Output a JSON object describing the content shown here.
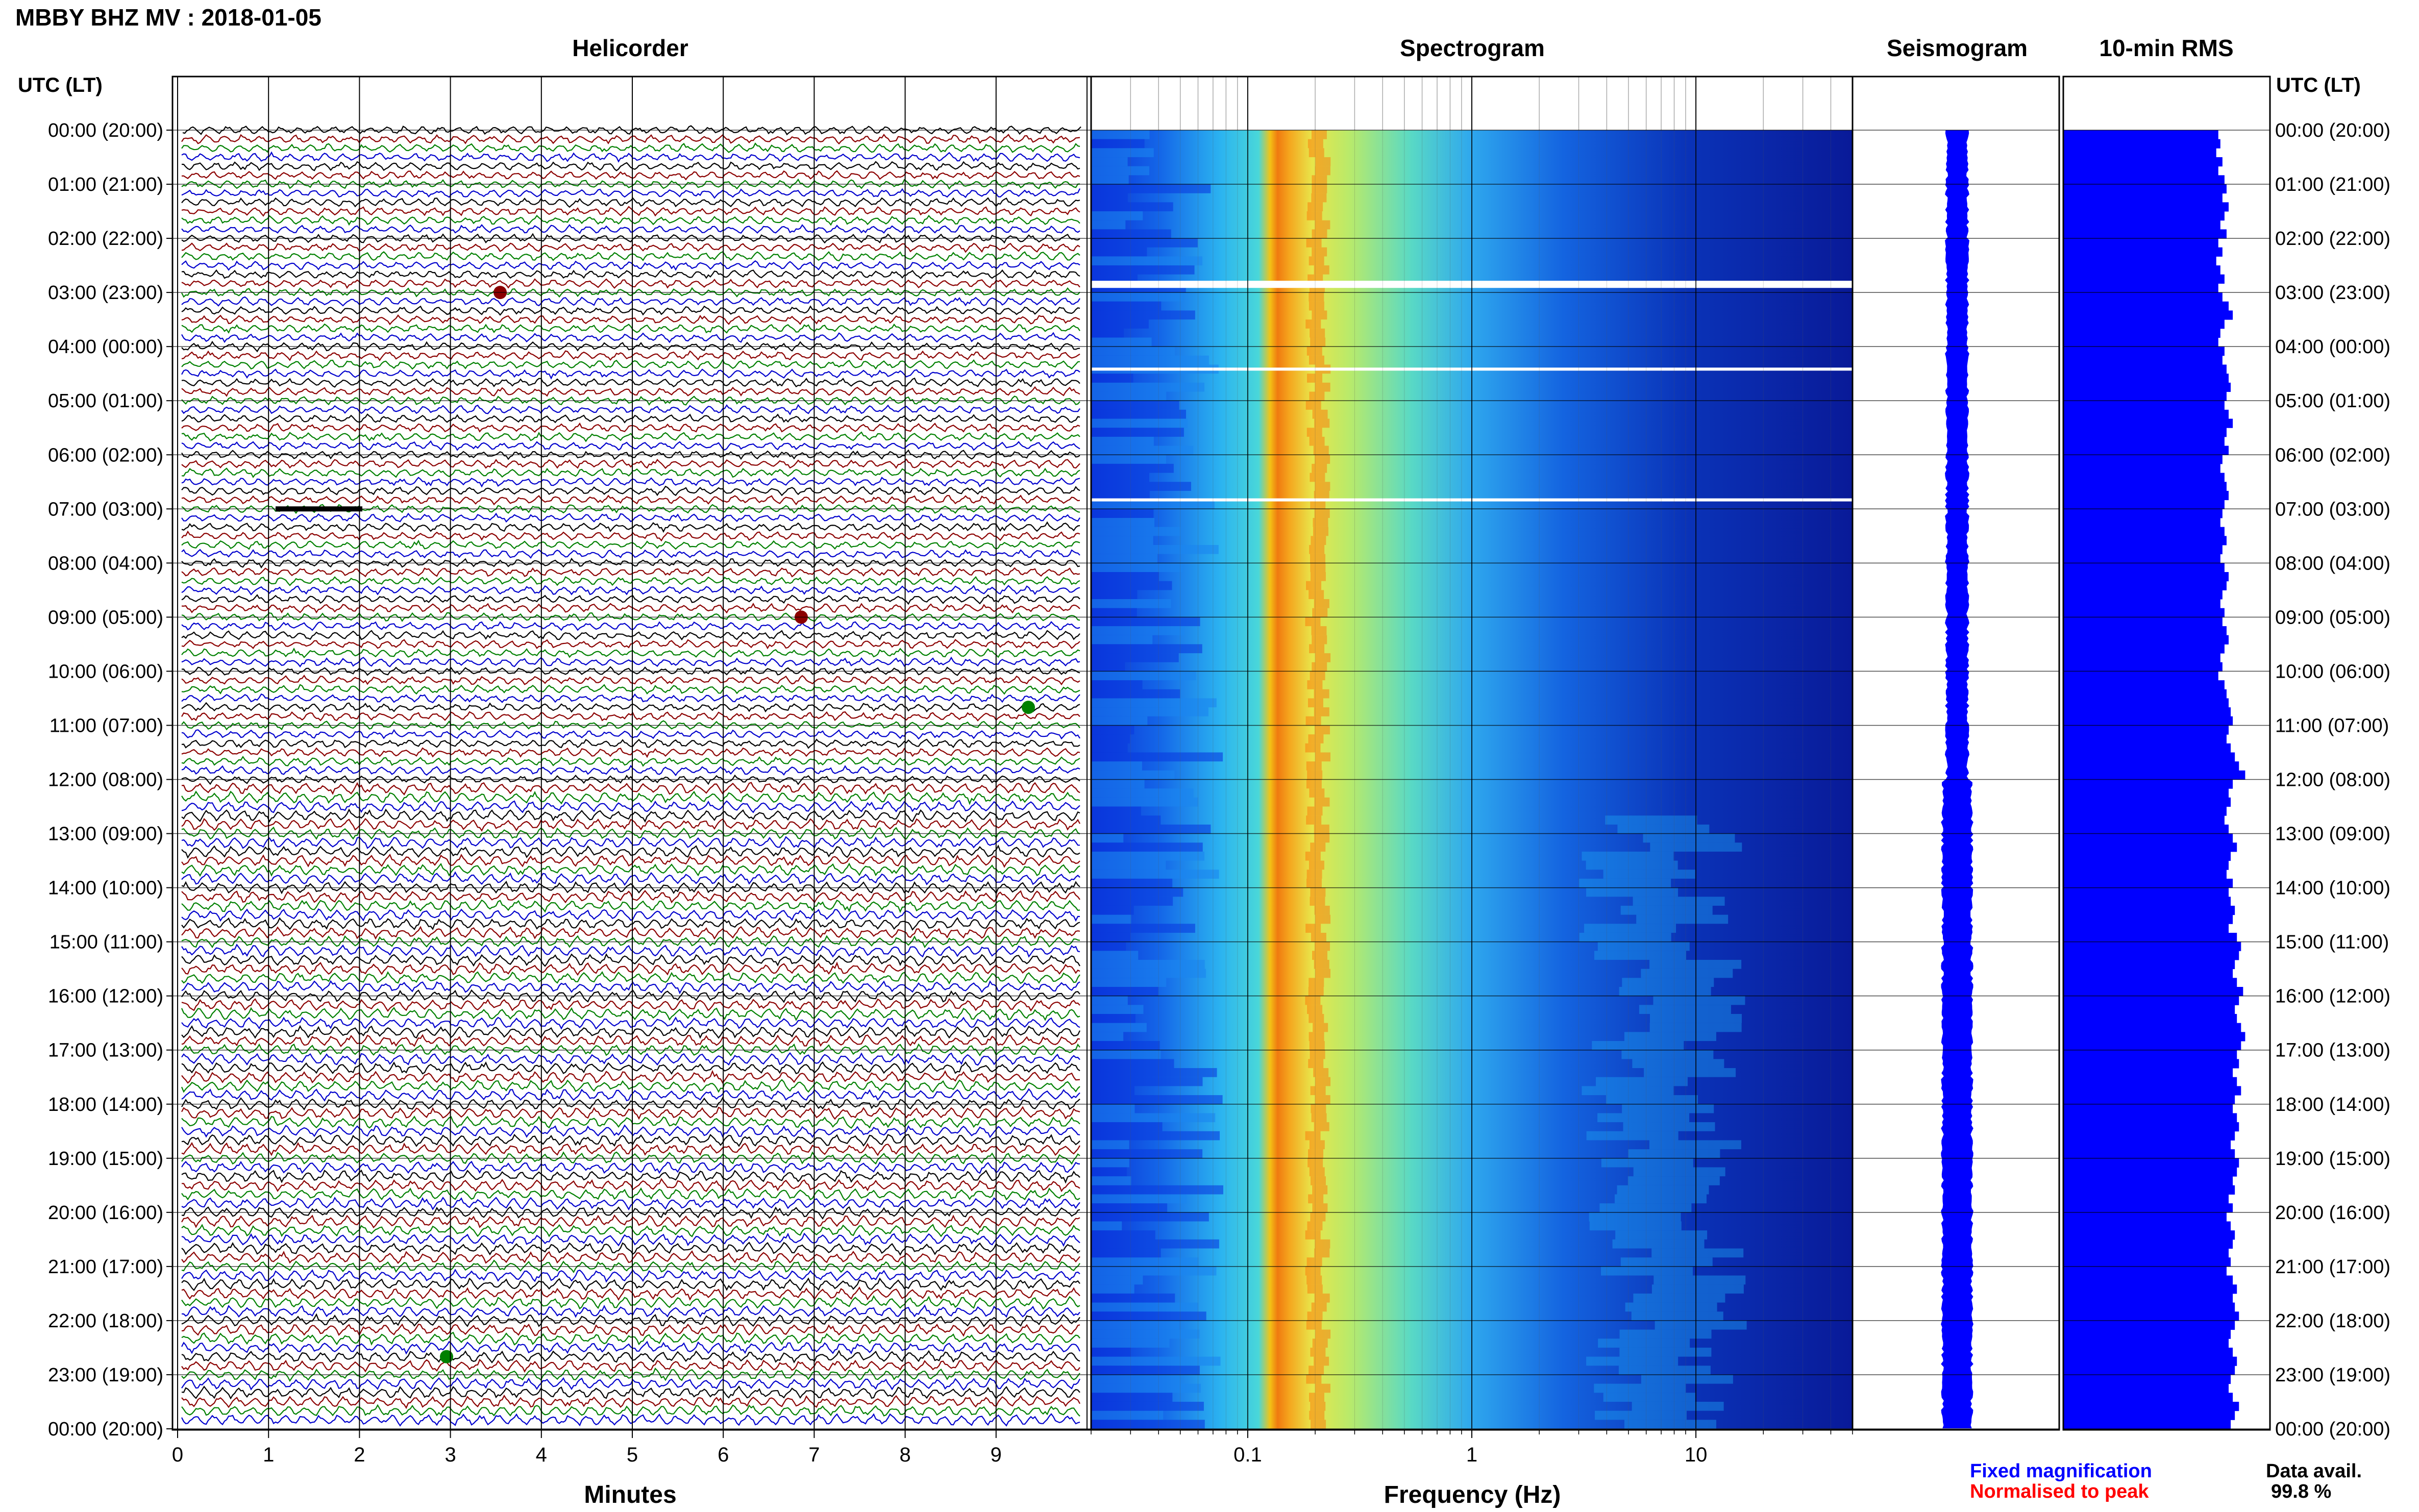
{
  "title": "MBBY BHZ MV : 2018-01-05",
  "panels": {
    "helicorder": "Helicorder",
    "spectrogram": "Spectrogram",
    "seismogram": "Seismogram",
    "rms": "10-min RMS"
  },
  "time_axis_label": "UTC (LT)",
  "time_labels": [
    "00:00 (20:00)",
    "01:00 (21:00)",
    "02:00 (22:00)",
    "03:00 (23:00)",
    "04:00 (00:00)",
    "05:00 (01:00)",
    "06:00 (02:00)",
    "07:00 (03:00)",
    "08:00 (04:00)",
    "09:00 (05:00)",
    "10:00 (06:00)",
    "11:00 (07:00)",
    "12:00 (08:00)",
    "13:00 (09:00)",
    "14:00 (10:00)",
    "15:00 (11:00)",
    "16:00 (12:00)",
    "17:00 (13:00)",
    "18:00 (14:00)",
    "19:00 (15:00)",
    "20:00 (16:00)",
    "21:00 (17:00)",
    "22:00 (18:00)",
    "23:00 (19:00)",
    "00:00 (20:00)"
  ],
  "minutes_axis": {
    "label": "Minutes",
    "ticks": [
      "0",
      "1",
      "2",
      "3",
      "4",
      "5",
      "6",
      "7",
      "8",
      "9"
    ]
  },
  "frequency_axis": {
    "label": "Frequency (Hz)",
    "ticks": [
      "0.1",
      "1",
      "10"
    ],
    "scale": "log",
    "range": [
      0.02,
      50
    ]
  },
  "legend": {
    "fixed": "Fixed magnification",
    "normalised": "Normalised to peak",
    "fixed_color": "#0000ff",
    "normalised_color": "#ff0000"
  },
  "data_availability": {
    "label": "Data avail.",
    "value": "99.8 %"
  },
  "colors": {
    "trace_cycle": [
      "#000000",
      "#8b0000",
      "#008000",
      "#0000cd"
    ],
    "seismogram": "#0000ff",
    "rms": "#0000ff",
    "grid": "#000000"
  },
  "chart_data": [
    {
      "type": "line",
      "name": "helicorder",
      "x_unit": "minutes",
      "xlim": [
        0,
        10
      ],
      "row_minutes": 10,
      "rows": 144,
      "y_range": [
        "00:00",
        "24:00"
      ],
      "gaps_utc": [
        "02:51",
        "04:25",
        "06:50"
      ]
    },
    {
      "type": "heatmap",
      "name": "spectrogram",
      "x_scale": "log",
      "xlim": [
        0.02,
        50
      ],
      "dominant_band_hz": [
        0.18,
        0.25
      ],
      "peak_hz": 0.21,
      "gaps_utc": [
        "02:51",
        "04:25",
        "06:50"
      ]
    },
    {
      "type": "bar",
      "name": "10-min RMS",
      "orientation": "horizontal",
      "bin_minutes": 10,
      "values_relative": [
        0.75,
        0.76,
        0.74,
        0.77,
        0.75,
        0.78,
        0.79,
        0.77,
        0.8,
        0.78,
        0.76,
        0.79,
        0.75,
        0.77,
        0.74,
        0.76,
        0.78,
        0.75,
        0.77,
        0.8,
        0.82,
        0.78,
        0.76,
        0.75,
        0.78,
        0.77,
        0.79,
        0.8,
        0.81,
        0.79,
        0.78,
        0.8,
        0.82,
        0.79,
        0.78,
        0.8,
        0.77,
        0.76,
        0.78,
        0.79,
        0.8,
        0.78,
        0.77,
        0.76,
        0.78,
        0.79,
        0.77,
        0.76,
        0.78,
        0.8,
        0.79,
        0.77,
        0.76,
        0.78,
        0.77,
        0.79,
        0.8,
        0.78,
        0.76,
        0.77,
        0.75,
        0.78,
        0.79,
        0.8,
        0.81,
        0.82,
        0.8,
        0.79,
        0.81,
        0.83,
        0.85,
        0.88,
        0.82,
        0.8,
        0.81,
        0.79,
        0.78,
        0.8,
        0.82,
        0.84,
        0.81,
        0.8,
        0.79,
        0.82,
        0.8,
        0.81,
        0.83,
        0.82,
        0.8,
        0.84,
        0.86,
        0.85,
        0.83,
        0.82,
        0.84,
        0.87,
        0.85,
        0.83,
        0.84,
        0.86,
        0.88,
        0.86,
        0.84,
        0.85,
        0.82,
        0.84,
        0.86,
        0.83,
        0.82,
        0.84,
        0.85,
        0.83,
        0.81,
        0.83,
        0.85,
        0.84,
        0.82,
        0.83,
        0.8,
        0.82,
        0.79,
        0.81,
        0.83,
        0.82,
        0.8,
        0.81,
        0.79,
        0.82,
        0.84,
        0.82,
        0.83,
        0.85,
        0.83,
        0.81,
        0.8,
        0.82,
        0.84,
        0.83,
        0.81,
        0.8,
        0.82,
        0.85,
        0.83,
        0.81
      ]
    }
  ]
}
